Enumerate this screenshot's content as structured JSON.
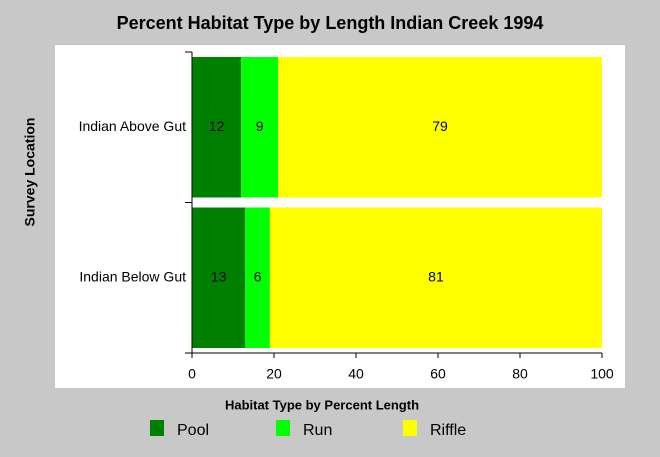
{
  "chart_data": {
    "type": "bar",
    "orientation": "horizontal",
    "stacked": true,
    "title": "Percent Habitat Type by Length Indian Creek 1994",
    "y_label": "Survey Location",
    "legend_title": "Habitat Type by Percent Length",
    "categories": [
      "Indian Above Gut",
      "Indian Below Gut"
    ],
    "series": [
      {
        "name": "Pool",
        "color": "#008000",
        "values": [
          12,
          13
        ]
      },
      {
        "name": "Run",
        "color": "#00ff00",
        "values": [
          9,
          6
        ]
      },
      {
        "name": "Riffle",
        "color": "#ffff00",
        "values": [
          79,
          81
        ]
      }
    ],
    "xlim": [
      0,
      100
    ],
    "xticks": [
      0,
      20,
      40,
      60,
      80,
      100
    ]
  }
}
